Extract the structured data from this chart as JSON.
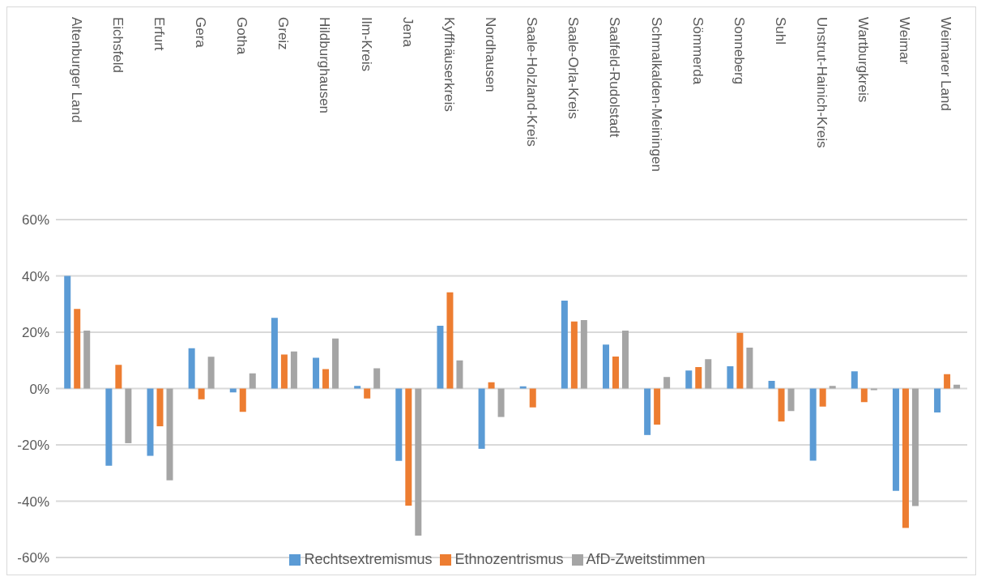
{
  "chart_data": {
    "type": "bar",
    "categories": [
      "Altenburger Land",
      "Eichsfeld",
      "Erfurt",
      "Gera",
      "Gotha",
      "Greiz",
      "Hildburghausen",
      "Ilm-Kreis",
      "Jena",
      "Kyffhäuserkreis",
      "Nordhausen",
      "Saale-Holzland-Kreis",
      "Saale-Orla-Kreis",
      "Saalfeld-Rudolstadt",
      "Schmalkalden-Meiningen",
      "Sömmerda",
      "Sonneberg",
      "Suhl",
      "Unstrut-Hainich-Kreis",
      "Wartburgkreis",
      "Weimar",
      "Weimarer Land"
    ],
    "series": [
      {
        "name": "Rechtsextremismus",
        "color": "#5b9bd5",
        "values": [
          40,
          -27.4,
          -23.9,
          14.3,
          -1.4,
          25.1,
          10.9,
          0.9,
          -25.7,
          22.3,
          -21.4,
          0.8,
          31.2,
          15.6,
          -16.5,
          6.4,
          7.9,
          2.7,
          -25.6,
          6.1,
          -36.3,
          -8.5
        ]
      },
      {
        "name": "Ethnozentrismus",
        "color": "#ed7d31",
        "values": [
          28.3,
          8.4,
          -13.4,
          -3.8,
          -8.3,
          12.1,
          6.9,
          -3.5,
          -41.6,
          34.2,
          2.2,
          -6.7,
          23.8,
          11.4,
          -12.8,
          7.6,
          19.8,
          -11.7,
          -6.4,
          -4.8,
          -49.5,
          5.1
        ]
      },
      {
        "name": "AfD-Zweitstimmen",
        "color": "#a5a5a5",
        "values": [
          20.6,
          -19.4,
          -32.6,
          11.3,
          5.4,
          13.2,
          17.8,
          7.2,
          -52.2,
          10.0,
          -10.1,
          null,
          24.3,
          20.6,
          4.1,
          10.4,
          14.5,
          -8.0,
          0.9,
          -0.6,
          -41.7,
          1.4
        ]
      }
    ],
    "ylim": [
      -60,
      60
    ],
    "yticks": [
      {
        "value": -60,
        "label": "-60%"
      },
      {
        "value": -40,
        "label": "-40%"
      },
      {
        "value": -20,
        "label": "-20%"
      },
      {
        "value": 0,
        "label": "0%"
      },
      {
        "value": 20,
        "label": "20%"
      },
      {
        "value": 40,
        "label": "40%"
      },
      {
        "value": 60,
        "label": "60%"
      }
    ],
    "grid": "y",
    "legend": "bottom"
  }
}
